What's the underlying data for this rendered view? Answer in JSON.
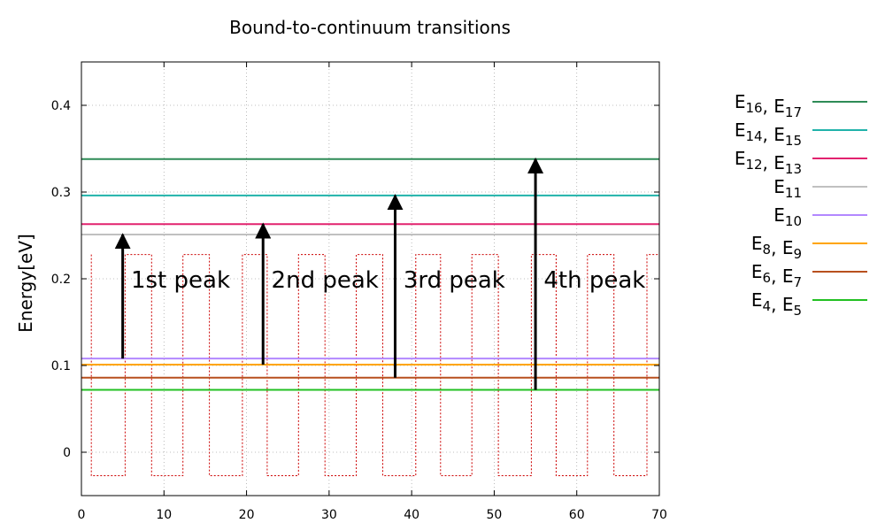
{
  "chart_data": {
    "type": "line",
    "title": "Bound-to-continuum transitions",
    "xlabel": "",
    "ylabel": "Energy[eV]",
    "xlim": [
      0,
      70
    ],
    "ylim": [
      -0.05,
      0.45
    ],
    "xticks": [
      0,
      10,
      20,
      30,
      40,
      50,
      60,
      70
    ],
    "yticks": [
      0,
      0.1,
      0.2,
      0.3,
      0.4
    ],
    "xtick_labels": [
      "0",
      "10",
      "20",
      "30",
      "40",
      "50",
      "60",
      "70"
    ],
    "ytick_labels": [
      "0",
      "0.1",
      "0.2",
      "0.3",
      "0.4"
    ],
    "grid": true,
    "legend_position": "outside-right",
    "series": [
      {
        "label": [
          {
            "b": "E",
            "s": "16"
          },
          {
            "t": ", "
          },
          {
            "b": "E",
            "s": "17"
          }
        ],
        "y": 0.338,
        "color": "#2e8b57"
      },
      {
        "label": [
          {
            "b": "E",
            "s": "14"
          },
          {
            "t": ", "
          },
          {
            "b": "E",
            "s": "15"
          }
        ],
        "y": 0.296,
        "color": "#20b2aa"
      },
      {
        "label": [
          {
            "b": "E",
            "s": "12"
          },
          {
            "t": ", "
          },
          {
            "b": "E",
            "s": "13"
          }
        ],
        "y": 0.263,
        "color": "#e2226e"
      },
      {
        "label": [
          {
            "b": "E",
            "s": "11"
          }
        ],
        "y": 0.251,
        "color": "#c0c0c0"
      },
      {
        "label": [
          {
            "b": "E",
            "s": "10"
          }
        ],
        "y": 0.108,
        "color": "#b388ff"
      },
      {
        "label": [
          {
            "b": "E",
            "s": "8"
          },
          {
            "t": ", "
          },
          {
            "b": "E",
            "s": "9"
          }
        ],
        "y": 0.101,
        "color": "#ffa500"
      },
      {
        "label": [
          {
            "b": "E",
            "s": "6"
          },
          {
            "t": ", "
          },
          {
            "b": "E",
            "s": "7"
          }
        ],
        "y": 0.086,
        "color": "#b8501e"
      },
      {
        "label": [
          {
            "b": "E",
            "s": "4"
          },
          {
            "t": ", "
          },
          {
            "b": "E",
            "s": "5"
          }
        ],
        "y": 0.072,
        "color": "#22c022"
      }
    ],
    "potential_profile": {
      "color": "#cc0000",
      "style": "dotted",
      "points": [
        [
          1.2,
          0.228
        ],
        [
          1.2,
          -0.027
        ],
        [
          5.3,
          -0.027
        ],
        [
          5.3,
          0.228
        ],
        [
          8.5,
          0.228
        ],
        [
          8.5,
          -0.027
        ],
        [
          12.3,
          -0.027
        ],
        [
          12.3,
          0.228
        ],
        [
          15.5,
          0.228
        ],
        [
          15.5,
          -0.027
        ],
        [
          19.5,
          -0.027
        ],
        [
          19.5,
          0.228
        ],
        [
          22.5,
          0.228
        ],
        [
          22.5,
          -0.027
        ],
        [
          26.3,
          -0.027
        ],
        [
          26.3,
          0.228
        ],
        [
          29.5,
          0.228
        ],
        [
          29.5,
          -0.027
        ],
        [
          33.3,
          -0.027
        ],
        [
          33.3,
          0.228
        ],
        [
          36.5,
          0.228
        ],
        [
          36.5,
          -0.027
        ],
        [
          40.5,
          -0.027
        ],
        [
          40.5,
          0.228
        ],
        [
          43.5,
          0.228
        ],
        [
          43.5,
          -0.027
        ],
        [
          47.3,
          -0.027
        ],
        [
          47.3,
          0.228
        ],
        [
          50.5,
          0.228
        ],
        [
          50.5,
          -0.027
        ],
        [
          54.5,
          -0.027
        ],
        [
          54.5,
          0.228
        ],
        [
          57.5,
          0.228
        ],
        [
          57.5,
          -0.027
        ],
        [
          61.3,
          -0.027
        ],
        [
          61.3,
          0.228
        ],
        [
          64.5,
          0.228
        ],
        [
          64.5,
          -0.027
        ],
        [
          68.5,
          -0.027
        ],
        [
          68.5,
          0.228
        ],
        [
          70,
          0.228
        ]
      ]
    },
    "transitions": [
      {
        "x": 5,
        "y_from": 0.108,
        "y_to": 0.251,
        "label": "1st peak",
        "label_x": 6,
        "label_y": 0.2
      },
      {
        "x": 22,
        "y_from": 0.101,
        "y_to": 0.263,
        "label": "2nd peak",
        "label_x": 23,
        "label_y": 0.2
      },
      {
        "x": 38,
        "y_from": 0.086,
        "y_to": 0.296,
        "label": "3rd peak",
        "label_x": 39,
        "label_y": 0.2
      },
      {
        "x": 55,
        "y_from": 0.072,
        "y_to": 0.338,
        "label": "4th peak",
        "label_x": 56,
        "label_y": 0.2
      }
    ]
  }
}
